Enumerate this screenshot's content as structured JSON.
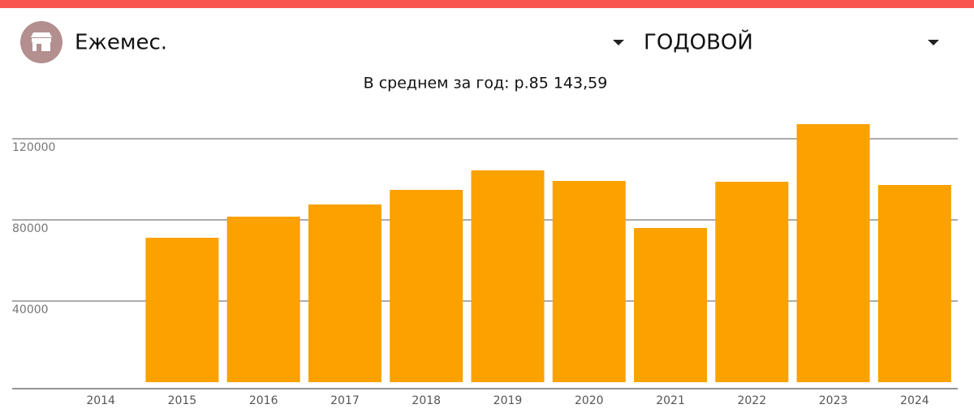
{
  "header": {
    "period": "Ежемес.",
    "range": "ГОДОВОЙ"
  },
  "chart_data": {
    "type": "bar",
    "title": "В среднем за год: р.85 143,59",
    "categories": [
      "2014",
      "2015",
      "2016",
      "2017",
      "2018",
      "2019",
      "2020",
      "2021",
      "2022",
      "2023",
      "2024"
    ],
    "values": [
      0,
      71200,
      81600,
      87600,
      94800,
      104400,
      99200,
      76000,
      98800,
      127200,
      97200
    ],
    "color": "#fba100",
    "ylim": [
      0,
      130000
    ],
    "yticks": [
      40000,
      80000,
      120000
    ],
    "grid": true
  }
}
